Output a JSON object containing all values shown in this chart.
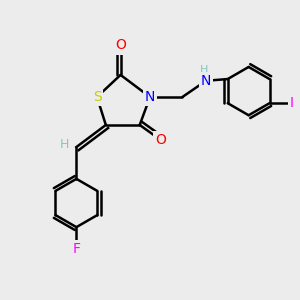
{
  "background_color": "#ececec",
  "atom_colors": {
    "C": "#000000",
    "H": "#7ec8c8",
    "N": "#0000ff",
    "O": "#ff0000",
    "S": "#cccc00",
    "F": "#ff00ff",
    "I": "#ff00ff"
  },
  "bond_color": "#000000",
  "bond_width": 1.8,
  "figsize": [
    3.0,
    3.0
  ],
  "dpi": 100
}
